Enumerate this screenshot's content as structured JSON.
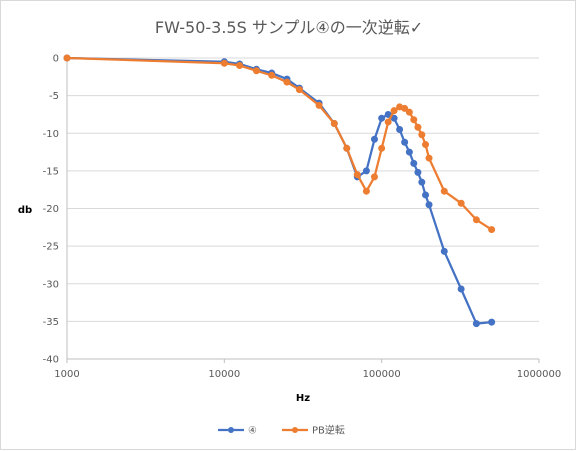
{
  "chart_data": {
    "type": "line",
    "title": "FW-50-3.5S サンプル④の一次逆転✓",
    "xlabel": "Hz",
    "ylabel": "db",
    "x_scale": "log",
    "xlim": [
      1000,
      1000000
    ],
    "ylim": [
      -40,
      0
    ],
    "x_ticks": [
      1000,
      10000,
      100000,
      1000000
    ],
    "x_tick_labels": [
      "1000",
      "10000",
      "100000",
      "1000000"
    ],
    "y_ticks": [
      0,
      -5,
      -10,
      -15,
      -20,
      -25,
      -30,
      -35,
      -40
    ],
    "grid": "horizontal",
    "legend_position": "bottom",
    "series": [
      {
        "name": "④",
        "color": "#4472C4",
        "points": [
          [
            1000,
            0.0
          ],
          [
            10000,
            -0.5
          ],
          [
            12500,
            -0.8
          ],
          [
            16000,
            -1.5
          ],
          [
            20000,
            -2.0
          ],
          [
            25000,
            -2.8
          ],
          [
            30000,
            -4.0
          ],
          [
            40000,
            -6.0
          ],
          [
            50000,
            -8.7
          ],
          [
            60000,
            -12.0
          ],
          [
            70000,
            -15.8
          ],
          [
            80000,
            -15.0
          ],
          [
            90000,
            -10.8
          ],
          [
            100000,
            -8.0
          ],
          [
            110000,
            -7.5
          ],
          [
            120000,
            -8.0
          ],
          [
            130000,
            -9.5
          ],
          [
            140000,
            -11.2
          ],
          [
            150000,
            -12.5
          ],
          [
            160000,
            -14.0
          ],
          [
            170000,
            -15.2
          ],
          [
            180000,
            -16.5
          ],
          [
            190000,
            -18.2
          ],
          [
            200000,
            -19.5
          ],
          [
            250000,
            -25.7
          ],
          [
            320000,
            -30.7
          ],
          [
            400000,
            -35.3
          ],
          [
            500000,
            -35.1
          ]
        ]
      },
      {
        "name": "PB逆転",
        "color": "#ED7D31",
        "points": [
          [
            1000,
            0.0
          ],
          [
            10000,
            -0.7
          ],
          [
            12500,
            -1.0
          ],
          [
            16000,
            -1.7
          ],
          [
            20000,
            -2.3
          ],
          [
            25000,
            -3.2
          ],
          [
            30000,
            -4.2
          ],
          [
            40000,
            -6.3
          ],
          [
            50000,
            -8.7
          ],
          [
            60000,
            -12.0
          ],
          [
            70000,
            -15.5
          ],
          [
            80000,
            -17.7
          ],
          [
            90000,
            -15.8
          ],
          [
            100000,
            -12.0
          ],
          [
            110000,
            -8.5
          ],
          [
            120000,
            -7.0
          ],
          [
            130000,
            -6.5
          ],
          [
            140000,
            -6.7
          ],
          [
            150000,
            -7.2
          ],
          [
            160000,
            -8.2
          ],
          [
            170000,
            -9.2
          ],
          [
            180000,
            -10.2
          ],
          [
            190000,
            -11.5
          ],
          [
            200000,
            -13.3
          ],
          [
            250000,
            -17.7
          ],
          [
            320000,
            -19.3
          ],
          [
            400000,
            -21.5
          ],
          [
            500000,
            -22.8
          ]
        ]
      }
    ]
  }
}
